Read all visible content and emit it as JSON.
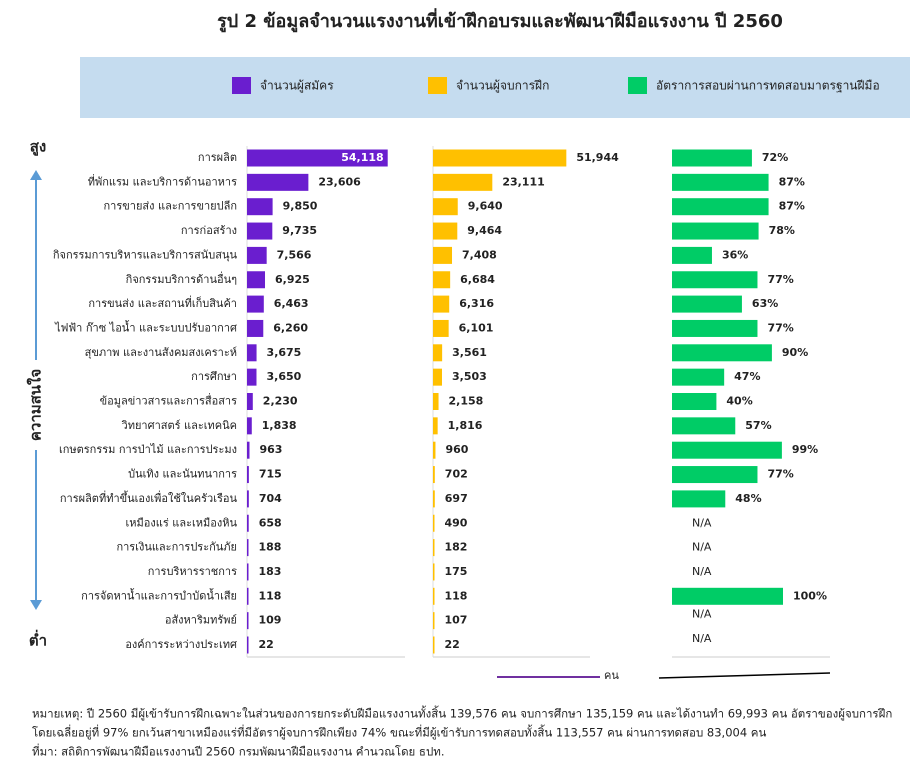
{
  "title": "รูป 2 ข้อมูลจำนวนแรงงานที่เข้าฝึกอบรมและพัฒนาฝีมือแรงงาน ปี 2560",
  "axis_label": "ความสนใจ",
  "axis_high": "สูง",
  "axis_low": "ต่ำ",
  "notes": [
    "หมายเหตุ: ปี 2560 มีผู้เข้ารับการฝึกเฉพาะในส่วนของการยกระดับฝีมือแรงงานทั้งสิ้น 139,576 คน จบการศึกษา 135,159 คน และได้งานทำ 69,993 คน อัตราของผู้จบการฝึก",
    "โดยเฉลี่ยอยู่ที่ 97% ยกเว้นสาขาเหมืองแร่ที่มีอัตราผู้จบการฝึกเพียง 74% ขณะที่มีผู้เข้ารับการทดสอบทั้งสิ้น 113,557 คน ผ่านการทดสอบ 83,004 คน",
    "ที่มา: สถิติการพัฒนาฝีมือแรงงานปี 2560 กรมพัฒนาฝีมือแรงงาน คำนวณโดย ธปท."
  ],
  "chart_data": [
    {
      "type": "bar",
      "unit": "คน",
      "xlim": [
        0,
        60000
      ],
      "categories": [
        "การผลิต",
        "ที่พักแรม และบริการด้านอาหาร",
        "การขายส่ง และการขายปลีก",
        "การก่อสร้าง",
        "กิจกรรมการบริหารและบริการสนับสนุน",
        "กิจกรรมบริการด้านอื่นๆ",
        "การขนส่ง และสถานที่เก็บสินค้า",
        "ไฟฟ้า ก๊าซ ไอน้ำ และระบบปรับอากาศ",
        "สุขภาพ และงานสังคมสงเคราะห์",
        "การศึกษา",
        "ข้อมูลข่าวสารและการสื่อสาร",
        "วิทยาศาสตร์ และเทคนิค",
        "เกษตรกรรม การป่าไม้ และการประมง",
        "บันเทิง และนันทนาการ",
        "การผลิตที่ทำขึ้นเองเพื่อใช้ในครัวเรือน",
        "เหมืองแร่ และเหมืองหิน",
        "การเงินและการประกันภัย",
        "การบริหารราชการ",
        "การจัดหาน้ำและการบำบัดน้ำเสีย",
        "อสังหาริมทรัพย์",
        "องค์การระหว่างประเทศ"
      ],
      "series": [
        {
          "name": "จำนวนผู้สมัคร",
          "color": "#6a1ecf",
          "values": [
            54118,
            23606,
            9850,
            9735,
            7566,
            6925,
            6463,
            6260,
            3675,
            3650,
            2230,
            1838,
            963,
            715,
            704,
            658,
            188,
            183,
            118,
            109,
            22
          ],
          "value_labels": [
            "54,118",
            "23,606",
            "9,850",
            "9,735",
            "7,566",
            "6,925",
            "6,463",
            "6,260",
            "3,675",
            "3,650",
            "2,230",
            "1,838",
            "963",
            "715",
            "704",
            "658",
            "188",
            "183",
            "118",
            "109",
            "22"
          ]
        }
      ]
    },
    {
      "type": "bar",
      "xlim": [
        0,
        60000
      ],
      "series": [
        {
          "name": "จำนวนผู้จบการฝึก",
          "color": "#ffc000",
          "values": [
            51944,
            23111,
            9640,
            9464,
            7408,
            6684,
            6316,
            6101,
            3561,
            3503,
            2158,
            1816,
            960,
            702,
            697,
            490,
            182,
            175,
            118,
            107,
            22
          ],
          "value_labels": [
            "51,944",
            "23,111",
            "9,640",
            "9,464",
            "7,408",
            "6,684",
            "6,316",
            "6,101",
            "3,561",
            "3,503",
            "2,158",
            "1,816",
            "960",
            "702",
            "697",
            "490",
            "182",
            "175",
            "118",
            "107",
            "22"
          ]
        }
      ]
    },
    {
      "type": "bar",
      "xlim": [
        0,
        100
      ],
      "series": [
        {
          "name": "อัตราการสอบผ่านการทดสอบมาตรฐานฝีมือ",
          "color": "#00cc66",
          "values": [
            72,
            87,
            87,
            78,
            36,
            77,
            63,
            77,
            90,
            47,
            40,
            57,
            99,
            77,
            48,
            null,
            null,
            null,
            100,
            null,
            null
          ],
          "value_labels": [
            "72%",
            "87%",
            "87%",
            "78%",
            "36%",
            "77%",
            "63%",
            "77%",
            "90%",
            "47%",
            "40%",
            "57%",
            "99%",
            "77%",
            "48%",
            "N/A",
            "N/A",
            "N/A",
            "100%",
            "N/A",
            "N/A"
          ]
        }
      ]
    }
  ]
}
